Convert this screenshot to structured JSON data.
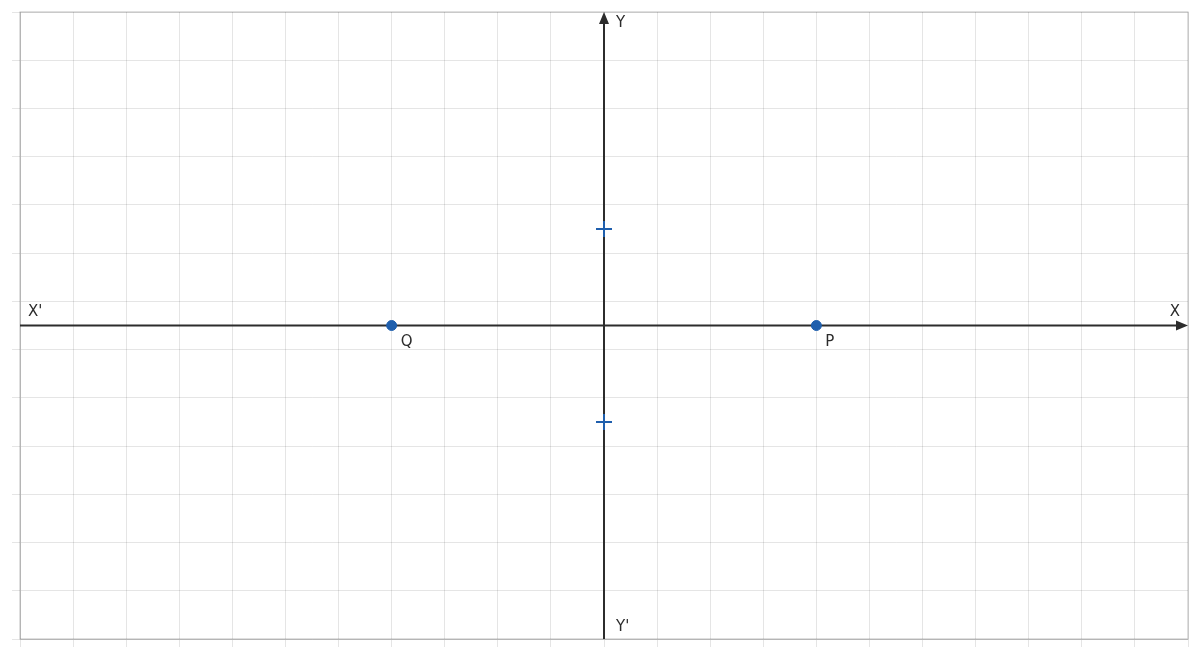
{
  "chart_data": {
    "type": "scatter",
    "series": [
      {
        "color": "#1F5FAD",
        "marker": "circle",
        "x": [
          4,
          -4
        ],
        "values": [
          0,
          0
        ]
      },
      {
        "color": "#1F5FAD",
        "marker": "cross",
        "x": [
          0,
          0
        ],
        "values": [
          2,
          -2
        ]
      }
    ],
    "annotations": [
      {
        "text": "X",
        "x": 11,
        "y": 0
      },
      {
        "text": "X'",
        "x": -11,
        "y": 0
      },
      {
        "text": "Y",
        "x": 0,
        "y": 6.5
      },
      {
        "text": "Y'",
        "x": 0,
        "y": -6.5
      },
      {
        "text": "P",
        "x": 4,
        "y": 0
      },
      {
        "text": "Q",
        "x": -4,
        "y": 0
      }
    ],
    "xlim": [
      -11,
      11
    ],
    "xticks": [
      -11,
      -10,
      -9,
      -8,
      -7,
      -6,
      -5,
      -4,
      -3,
      -2,
      -1,
      0,
      1,
      2,
      3,
      4,
      5,
      6,
      7,
      8,
      9,
      10,
      11
    ],
    "ylim": [
      -6.5,
      6.5
    ],
    "yticks": [
      -6.5,
      -5.5,
      -4.5,
      -3.5,
      -2.5,
      -1.5,
      -0.5,
      0.5,
      1.5,
      2.5,
      3.5,
      4.5,
      5.5,
      6.5
    ],
    "grid": true,
    "tick_labels": false
  }
}
